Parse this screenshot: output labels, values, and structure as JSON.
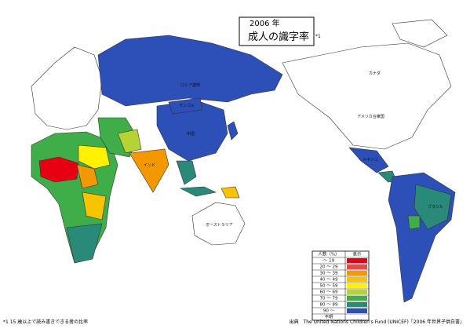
{
  "header": {
    "year": "2006 年",
    "title": "成人の識字率",
    "note_mark": "*1"
  },
  "legend": {
    "col_range": "人数（%）",
    "col_display": "表示",
    "items": [
      {
        "label": "～ 19",
        "color": "#e60012"
      },
      {
        "label": "20 ～ 29",
        "color": "#f0463c"
      },
      {
        "label": "30 ～ 39",
        "color": "#f39800"
      },
      {
        "label": "40 ～ 49",
        "color": "#f8c300"
      },
      {
        "label": "50 ～ 59",
        "color": "#fff100"
      },
      {
        "label": "60 ～ 69",
        "color": "#b5d334"
      },
      {
        "label": "70 ～ 79",
        "color": "#3fae49"
      },
      {
        "label": "80 ～ 89",
        "color": "#2a8a7a"
      },
      {
        "label": "90 ～",
        "color": "#2c4fb8"
      },
      {
        "label": "不明",
        "color": "#ffffff"
      }
    ]
  },
  "map_labels": [
    "ロシア連邦",
    "中国",
    "モンゴル",
    "インド",
    "オーストラリア",
    "カナダ",
    "アメリカ合衆国",
    "ブラジル",
    "メキシコ"
  ],
  "footer": {
    "note": "*1 15 歳以上で読み書きできる者の比率",
    "source": "出典　The United Nations Children's Fund (UNICEF)「2006 年世界子供白書」"
  }
}
